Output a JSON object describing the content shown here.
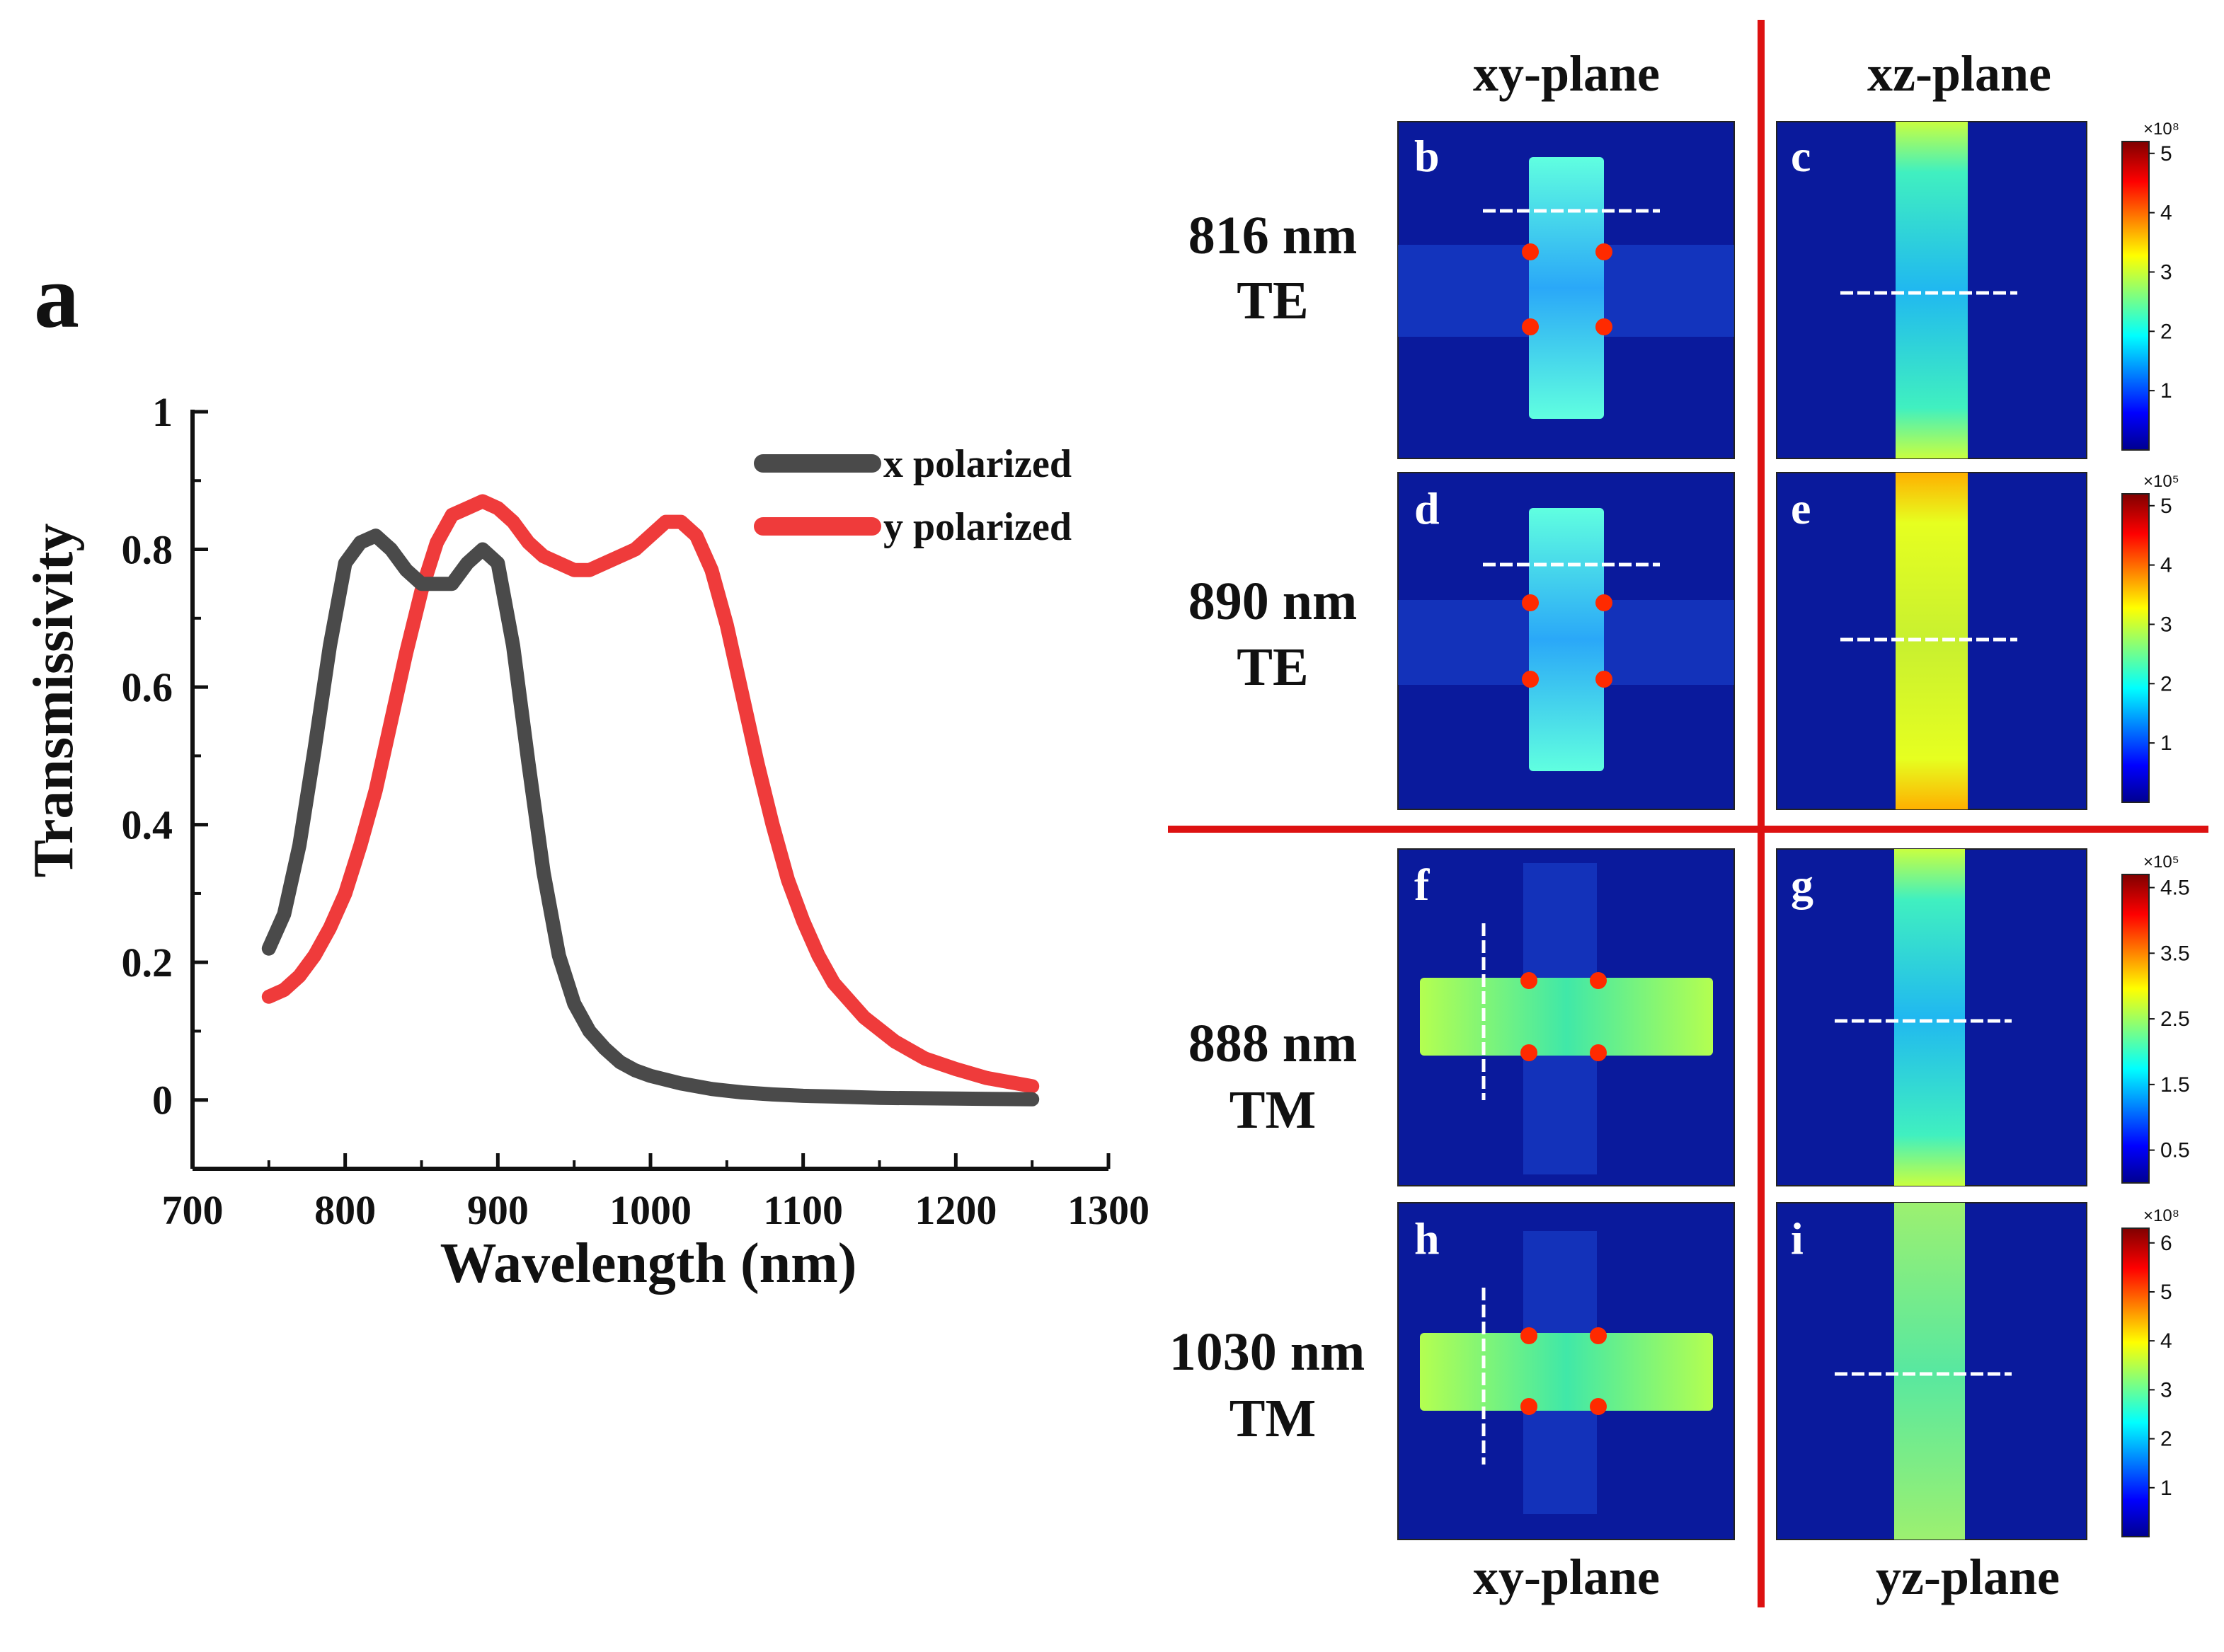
{
  "colors": {
    "x_series": "#4a4a4a",
    "y_series": "#ef3b3b",
    "divider": "#dd1111",
    "field_background": "#0a1a9c",
    "dashed_line": "#ffffff"
  },
  "panel_a": {
    "letter": "a",
    "chart_data": {
      "type": "line",
      "title": "",
      "xlabel": "Wavelength (nm)",
      "ylabel": "Transmissivity",
      "xlim": [
        700,
        1300
      ],
      "ylim": [
        -0.1,
        1.0
      ],
      "x_ticks": [
        "700",
        "800",
        "900",
        "1000",
        "1100",
        "1200",
        "1300"
      ],
      "y_ticks": [
        "0",
        "0.2",
        "0.4",
        "0.6",
        "0.8",
        "1"
      ],
      "legend_position": "top-right",
      "grid": false,
      "series": [
        {
          "name": "x polarized",
          "x": [
            750,
            760,
            770,
            780,
            790,
            800,
            810,
            820,
            830,
            840,
            850,
            860,
            870,
            880,
            890,
            900,
            910,
            920,
            930,
            940,
            950,
            960,
            970,
            980,
            990,
            1000,
            1020,
            1040,
            1060,
            1080,
            1100,
            1120,
            1150,
            1200,
            1250
          ],
          "y": [
            0.22,
            0.27,
            0.37,
            0.51,
            0.66,
            0.78,
            0.81,
            0.82,
            0.8,
            0.77,
            0.75,
            0.75,
            0.75,
            0.78,
            0.8,
            0.78,
            0.66,
            0.49,
            0.33,
            0.21,
            0.14,
            0.1,
            0.075,
            0.055,
            0.043,
            0.035,
            0.024,
            0.016,
            0.011,
            0.008,
            0.006,
            0.005,
            0.003,
            0.002,
            0.001
          ]
        },
        {
          "name": "y polarized",
          "x": [
            750,
            760,
            770,
            780,
            790,
            800,
            810,
            820,
            830,
            840,
            850,
            860,
            870,
            880,
            890,
            900,
            910,
            920,
            930,
            940,
            950,
            960,
            970,
            980,
            990,
            1000,
            1010,
            1020,
            1030,
            1040,
            1050,
            1060,
            1070,
            1080,
            1090,
            1100,
            1110,
            1120,
            1140,
            1160,
            1180,
            1200,
            1220,
            1250
          ],
          "y": [
            0.15,
            0.16,
            0.18,
            0.21,
            0.25,
            0.3,
            0.37,
            0.45,
            0.55,
            0.65,
            0.74,
            0.81,
            0.85,
            0.86,
            0.87,
            0.86,
            0.84,
            0.81,
            0.79,
            0.78,
            0.77,
            0.77,
            0.78,
            0.79,
            0.8,
            0.82,
            0.84,
            0.84,
            0.82,
            0.77,
            0.69,
            0.59,
            0.49,
            0.4,
            0.32,
            0.26,
            0.21,
            0.17,
            0.12,
            0.085,
            0.06,
            0.045,
            0.032,
            0.02
          ]
        }
      ]
    }
  },
  "field_maps": {
    "column_headers": [
      "xy-plane",
      "xz-plane"
    ],
    "column_footers": [
      "xy-plane",
      "yz-plane"
    ],
    "rows": [
      {
        "label_line1": "816 nm",
        "label_line2": "TE",
        "left_letter": "b",
        "right_letter": "c",
        "colorbar_exponent": "×10⁸",
        "colorbar_ticks": [
          "5",
          "4",
          "3",
          "2",
          "1"
        ],
        "colorbar_max": 5.2
      },
      {
        "label_line1": "890 nm",
        "label_line2": "TE",
        "left_letter": "d",
        "right_letter": "e",
        "colorbar_exponent": "×10⁵",
        "colorbar_ticks": [
          "5",
          "4",
          "3",
          "2",
          "1"
        ],
        "colorbar_max": 5.2
      },
      {
        "label_line1": "888 nm",
        "label_line2": "TM",
        "left_letter": "f",
        "right_letter": "g",
        "colorbar_exponent": "×10⁵",
        "colorbar_ticks": [
          "4.5",
          "3.5",
          "2.5",
          "1.5",
          "0.5"
        ],
        "colorbar_max": 4.7
      },
      {
        "label_line1": "1030 nm",
        "label_line2": "TM",
        "left_letter": "h",
        "right_letter": "i",
        "colorbar_exponent": "×10⁸",
        "colorbar_ticks": [
          "6",
          "5",
          "4",
          "3",
          "2",
          "1"
        ],
        "colorbar_max": 6.3
      }
    ]
  }
}
